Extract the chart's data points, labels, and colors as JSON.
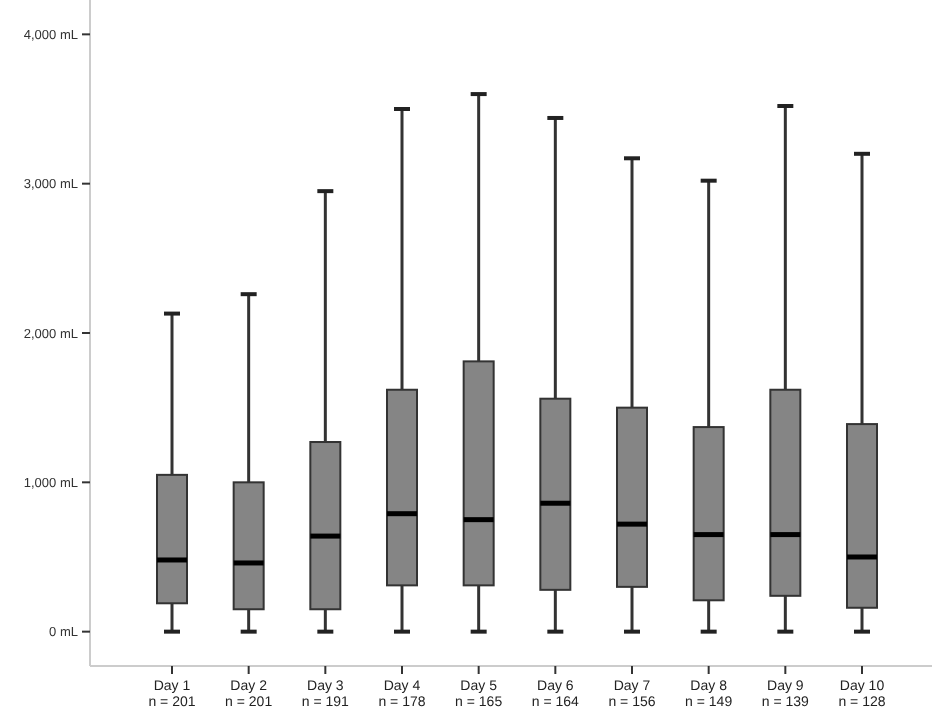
{
  "chart_data": {
    "type": "box",
    "categories": [
      "Day 1\nn = 201",
      "Day 2\nn = 201",
      "Day 3\nn = 191",
      "Day 4\nn = 178",
      "Day 5\nn = 165",
      "Day 6\nn = 164",
      "Day 7\nn = 156",
      "Day 8\nn = 149",
      "Day 9\nn = 139",
      "Day 10\nn = 128"
    ],
    "boxes": [
      {
        "low": 0,
        "q1": 190,
        "median": 480,
        "q3": 1050,
        "high": 2130
      },
      {
        "low": 0,
        "q1": 150,
        "median": 460,
        "q3": 1000,
        "high": 2260
      },
      {
        "low": 0,
        "q1": 150,
        "median": 640,
        "q3": 1270,
        "high": 2950
      },
      {
        "low": 0,
        "q1": 310,
        "median": 790,
        "q3": 1620,
        "high": 3500
      },
      {
        "low": 0,
        "q1": 310,
        "median": 750,
        "q3": 1810,
        "high": 3600
      },
      {
        "low": 0,
        "q1": 280,
        "median": 860,
        "q3": 1560,
        "high": 3440
      },
      {
        "low": 0,
        "q1": 300,
        "median": 720,
        "q3": 1500,
        "high": 3170
      },
      {
        "low": 0,
        "q1": 210,
        "median": 650,
        "q3": 1370,
        "high": 3020
      },
      {
        "low": 0,
        "q1": 240,
        "median": 650,
        "q3": 1620,
        "high": 3520
      },
      {
        "low": 0,
        "q1": 160,
        "median": 500,
        "q3": 1390,
        "high": 3200
      }
    ],
    "color": "#858585",
    "ylim": [
      -230,
      4230
    ],
    "yticks": [
      {
        "value": 0,
        "label": "0 mL"
      },
      {
        "value": 1000,
        "label": "1,000 mL"
      },
      {
        "value": 2000,
        "label": "2,000 mL"
      },
      {
        "value": 3000,
        "label": "3,000 mL"
      },
      {
        "value": 4000,
        "label": "4,000 mL"
      }
    ],
    "grid": false
  }
}
